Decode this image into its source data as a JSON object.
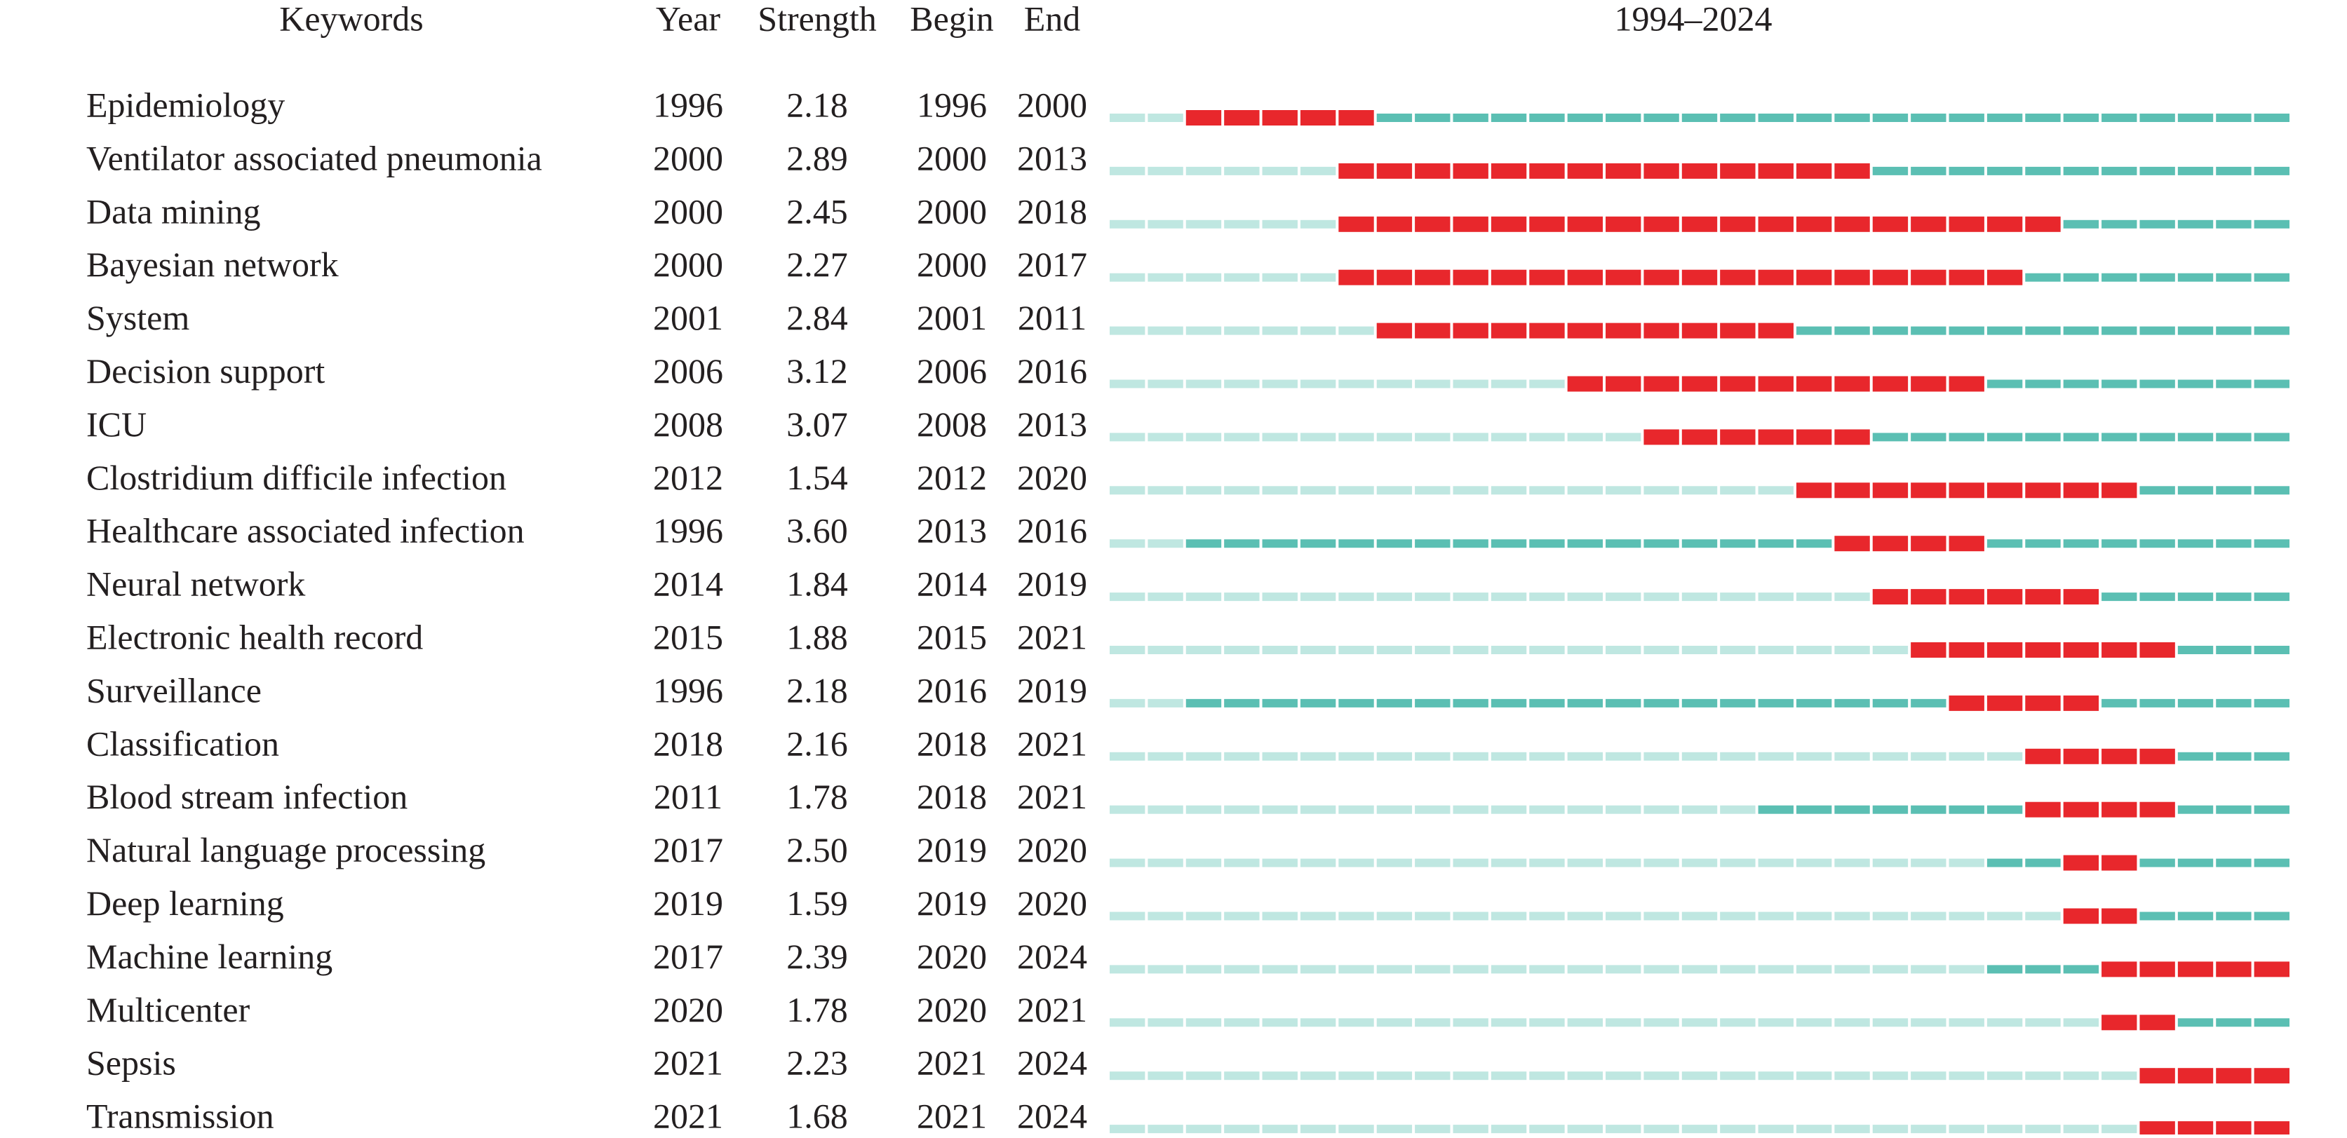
{
  "chart_data": {
    "type": "burst",
    "headers": [
      "Keywords",
      "Year",
      "Strength",
      "Begin",
      "End"
    ],
    "range_label": "1994–2024",
    "xlim": [
      1994,
      2024
    ],
    "colors": {
      "before": "#bfe7e1",
      "active": "#5bbfb3",
      "burst": "#e8272c"
    },
    "keywords": [
      "Epidemiology",
      "Ventilator associated pneumonia",
      "Data mining",
      "Bayesian network",
      "System",
      "Decision support",
      "ICU",
      "Clostridium difficile infection",
      "Healthcare associated infection",
      "Neural network",
      "Electronic health record",
      "Surveillance",
      "Classification",
      "Blood stream infection",
      "Natural language processing",
      "Deep learning",
      "Machine learning",
      "Multicenter",
      "Sepsis",
      "Transmission"
    ],
    "year": [
      1996,
      2000,
      2000,
      2000,
      2001,
      2006,
      2008,
      2012,
      1996,
      2014,
      2015,
      1996,
      2018,
      2011,
      2017,
      2019,
      2017,
      2020,
      2021,
      2021
    ],
    "strength": {
      "values": [
        2.18,
        2.89,
        2.45,
        2.27,
        2.84,
        3.12,
        3.07,
        1.54,
        3.6,
        1.84,
        1.88,
        2.18,
        2.16,
        1.78,
        2.5,
        1.59,
        2.39,
        1.78,
        2.23,
        1.68
      ],
      "value_labels": [
        "2.18",
        "2.89",
        "2.45",
        "2.27",
        "2.84",
        "3.12",
        "3.07",
        "1.54",
        "3.60",
        "1.84",
        "1.88",
        "2.18",
        "2.16",
        "1.78",
        "2.50",
        "1.59",
        "2.39",
        "1.78",
        "2.23",
        "1.68"
      ]
    },
    "begin": [
      1996,
      2000,
      2000,
      2000,
      2001,
      2006,
      2008,
      2012,
      2013,
      2014,
      2015,
      2016,
      2018,
      2018,
      2019,
      2019,
      2020,
      2020,
      2021,
      2021
    ],
    "end": [
      2000,
      2013,
      2018,
      2017,
      2011,
      2016,
      2013,
      2020,
      2016,
      2019,
      2021,
      2019,
      2021,
      2021,
      2020,
      2020,
      2024,
      2021,
      2024,
      2024
    ]
  }
}
